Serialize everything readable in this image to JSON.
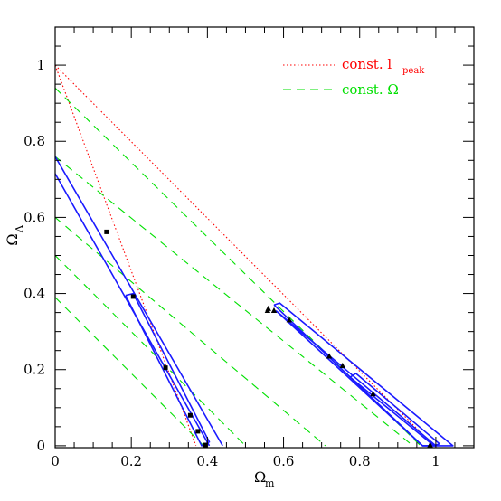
{
  "chart_data": {
    "type": "line",
    "xlabel": {
      "symbol": "Ω",
      "subscript": "m"
    },
    "ylabel": {
      "symbol": "Ω",
      "subscript": "Λ"
    },
    "xlim": [
      0,
      1.1
    ],
    "ylim": [
      -0.005,
      1.1
    ],
    "x_ticks": [
      {
        "value": 0,
        "label": "0"
      },
      {
        "value": 0.2,
        "label": "0.2"
      },
      {
        "value": 0.4,
        "label": "0.4"
      },
      {
        "value": 0.6,
        "label": "0.6"
      },
      {
        "value": 0.8,
        "label": "0.8"
      },
      {
        "value": 1,
        "label": "1"
      }
    ],
    "y_ticks": [
      {
        "value": 0,
        "label": "0"
      },
      {
        "value": 0.2,
        "label": "0.2"
      },
      {
        "value": 0.4,
        "label": "0.4"
      },
      {
        "value": 0.6,
        "label": "0.6"
      },
      {
        "value": 0.8,
        "label": "0.8"
      },
      {
        "value": 1,
        "label": "1"
      }
    ],
    "x_minor_step": 0.05,
    "y_minor_step": 0.05,
    "grid": false,
    "legend": {
      "placement": "top-right",
      "entries": [
        {
          "text": "const. l",
          "subscript": "peak",
          "color": "#ff0000",
          "style": "dotted"
        },
        {
          "text": "const. Ω",
          "subscript": "",
          "color": "#00e000",
          "style": "dashed"
        }
      ]
    },
    "dotted_lines": [
      {
        "points": [
          [
            0,
            1
          ],
          [
            0.37,
            0
          ]
        ]
      },
      {
        "points": [
          [
            0,
            1
          ],
          [
            0.995,
            0
          ]
        ]
      }
    ],
    "dashed_lines": [
      {
        "points": [
          [
            0,
            0.94
          ],
          [
            0.96,
            0
          ]
        ]
      },
      {
        "points": [
          [
            0,
            0.76
          ],
          [
            0.94,
            0
          ]
        ]
      },
      {
        "points": [
          [
            0,
            0.6
          ],
          [
            0.71,
            0
          ]
        ]
      },
      {
        "points": [
          [
            0,
            0.5
          ],
          [
            0.5,
            0
          ]
        ]
      },
      {
        "points": [
          [
            0,
            0.39
          ],
          [
            0.39,
            0
          ]
        ]
      }
    ],
    "contours": [
      {
        "points": [
          [
            0,
            0.76
          ],
          [
            0.44,
            0
          ]
        ]
      },
      {
        "points": [
          [
            0,
            0.715
          ],
          [
            0.405,
            0
          ]
        ]
      },
      {
        "points": [
          [
            0.185,
            0.395
          ],
          [
            0.205,
            0.4
          ],
          [
            0.405,
            0.01
          ],
          [
            0.385,
            0.0
          ],
          [
            0.185,
            0.395
          ]
        ]
      },
      {
        "points": [
          [
            0.575,
            0.37
          ],
          [
            0.59,
            0.375
          ],
          [
            1.045,
            0
          ],
          [
            0.965,
            0
          ],
          [
            0.575,
            0.37
          ]
        ]
      },
      {
        "points": [
          [
            0.58,
            0.355
          ],
          [
            1.0,
            0
          ],
          [
            0.965,
            0
          ],
          [
            0.58,
            0.355
          ]
        ]
      },
      {
        "points": [
          [
            0.775,
            0.18
          ],
          [
            0.79,
            0.19
          ],
          [
            1.01,
            0.005
          ],
          [
            0.995,
            0
          ],
          [
            0.775,
            0.18
          ]
        ]
      }
    ],
    "contour_color": "#1a1aff",
    "markers_square": [
      [
        0.135,
        0.562
      ],
      [
        0.205,
        0.392
      ],
      [
        0.29,
        0.205
      ],
      [
        0.355,
        0.08
      ],
      [
        0.375,
        0.038
      ],
      [
        0.395,
        0.002
      ]
    ],
    "markers_triangle": [
      [
        0.558,
        0.355
      ],
      [
        0.56,
        0.36
      ],
      [
        0.575,
        0.355
      ],
      [
        0.615,
        0.33
      ],
      [
        0.72,
        0.235
      ],
      [
        0.755,
        0.21
      ],
      [
        0.835,
        0.136
      ],
      [
        0.985,
        0.002
      ]
    ]
  }
}
